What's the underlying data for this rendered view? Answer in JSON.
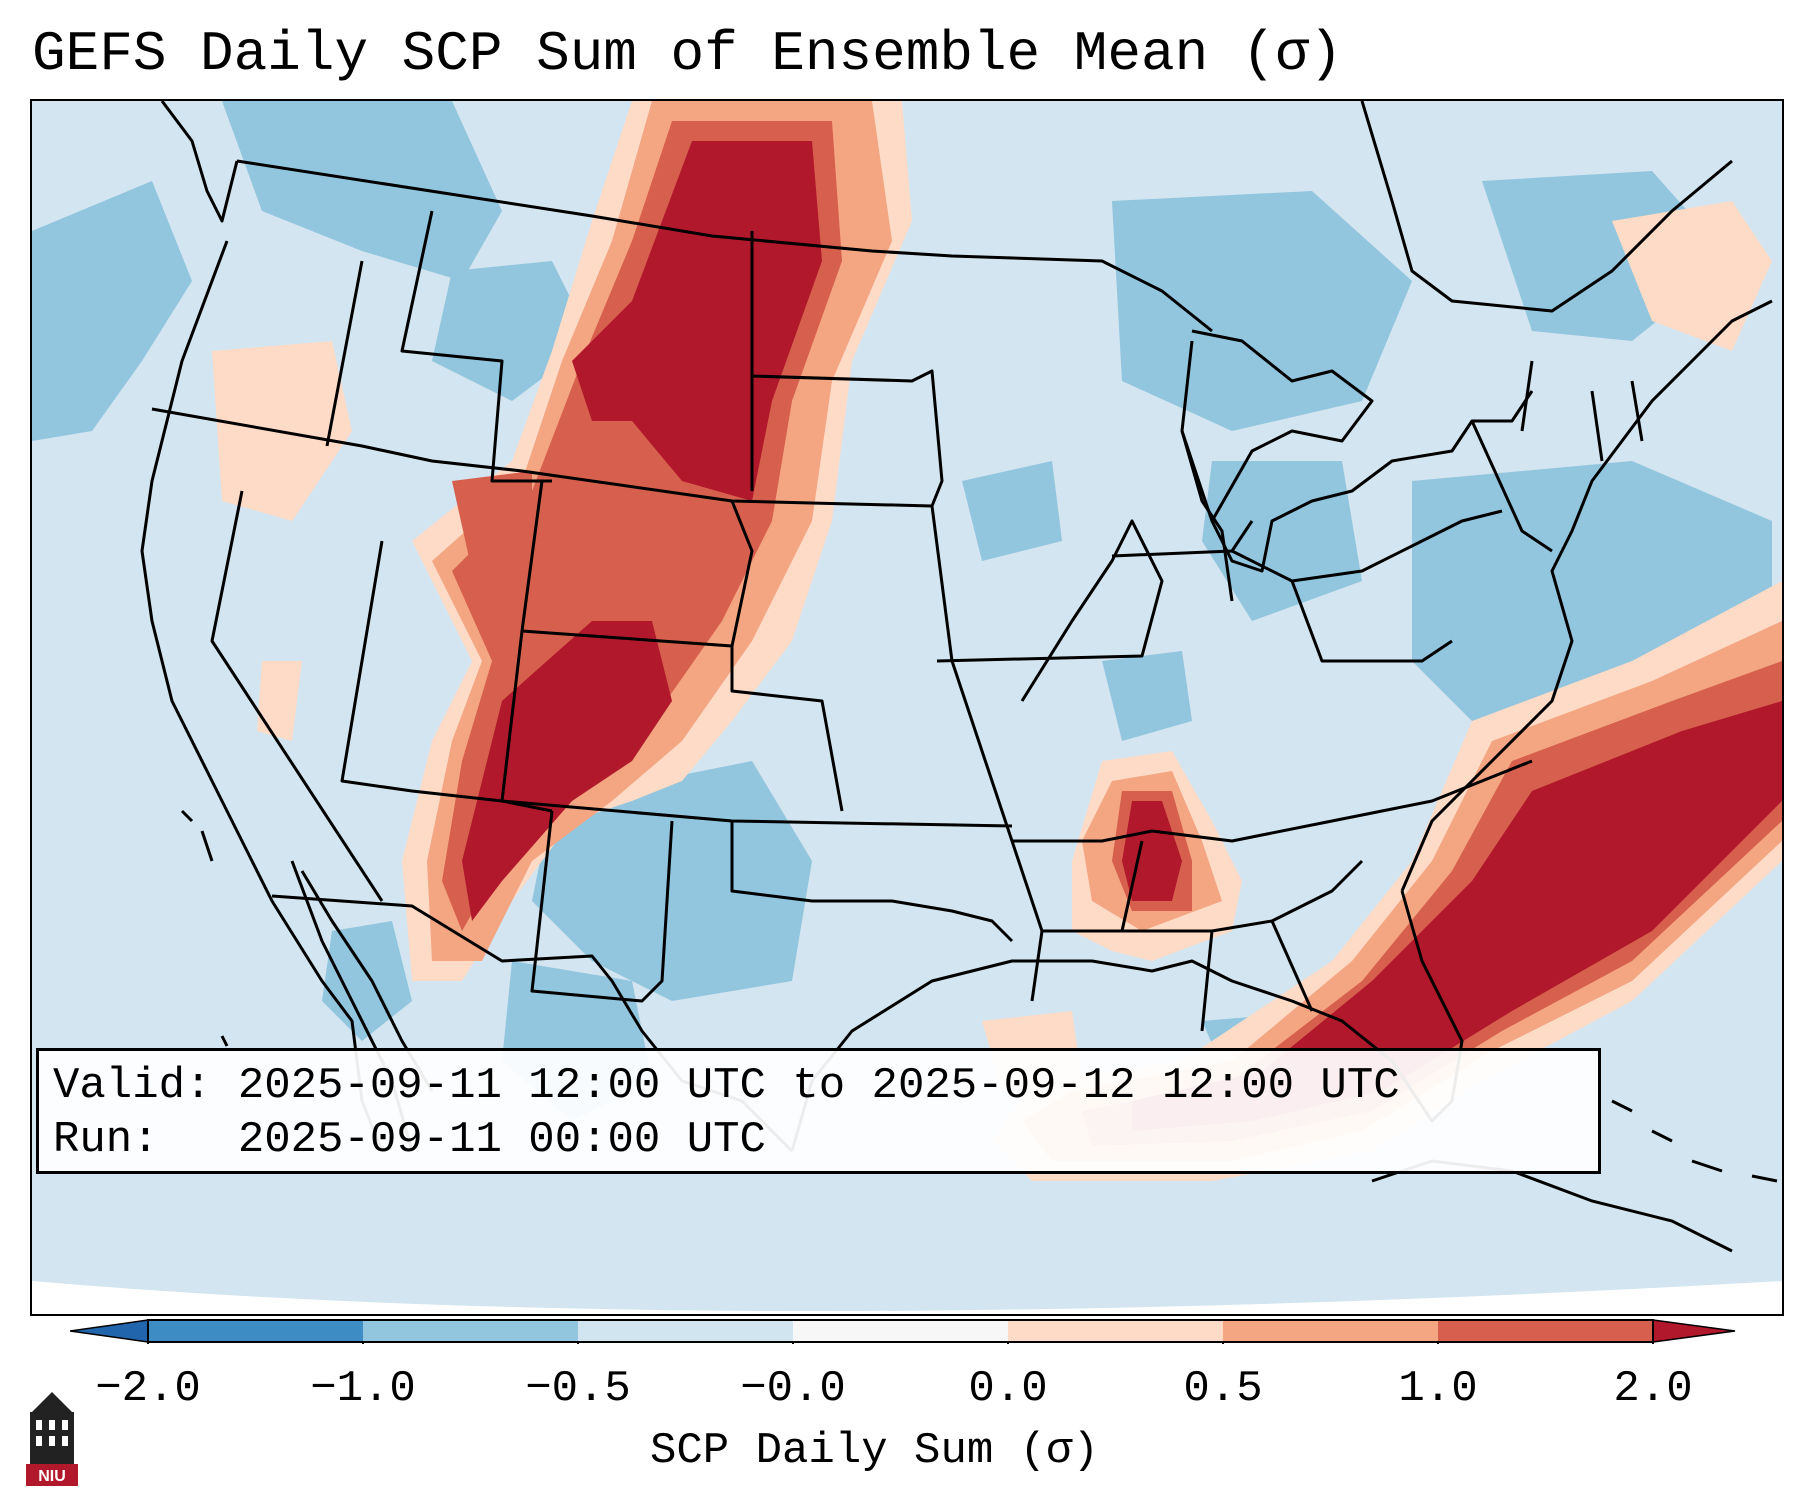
{
  "title": "GEFS Daily SCP Sum of Ensemble Mean (σ)",
  "info": {
    "valid_label": "Valid:",
    "valid_value": "2025-09-11 12:00 UTC to 2025-09-12 12:00 UTC",
    "run_label": "Run:",
    "run_value": "2025-09-11 00:00 UTC"
  },
  "colorbar": {
    "label": "SCP Daily Sum (σ)",
    "ticks": [
      "−2.0",
      "−1.0",
      "−0.5",
      "−0.0",
      "0.0",
      "0.5",
      "1.0",
      "2.0"
    ],
    "colors": [
      "#3d8cc4",
      "#92c5de",
      "#d1e5f0",
      "#f7f7f7",
      "#fddbc7",
      "#f4a582",
      "#d6604d",
      "#b2182b"
    ]
  },
  "logo": {
    "text": "NIU",
    "icon": "university-tower-icon"
  }
}
